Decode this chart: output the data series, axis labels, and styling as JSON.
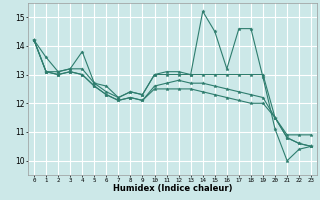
{
  "xlabel": "Humidex (Indice chaleur)",
  "bg_color": "#cce8e8",
  "grid_color": "#ffffff",
  "line_color": "#2e7d6e",
  "xlim": [
    -0.5,
    23.5
  ],
  "ylim": [
    9.5,
    15.5
  ],
  "xticks": [
    0,
    1,
    2,
    3,
    4,
    5,
    6,
    7,
    8,
    9,
    10,
    11,
    12,
    13,
    14,
    15,
    16,
    17,
    18,
    19,
    20,
    21,
    22,
    23
  ],
  "yticks": [
    10,
    11,
    12,
    13,
    14,
    15
  ],
  "series": [
    [
      14.2,
      13.6,
      13.1,
      13.2,
      13.8,
      12.7,
      12.6,
      12.2,
      12.4,
      12.3,
      13.0,
      13.1,
      13.1,
      13.0,
      15.2,
      14.5,
      13.2,
      14.6,
      14.6,
      12.9,
      11.1,
      10.0,
      10.4,
      10.5
    ],
    [
      14.2,
      13.1,
      13.1,
      13.2,
      13.2,
      12.7,
      12.4,
      12.2,
      12.4,
      12.3,
      13.0,
      13.0,
      13.0,
      13.0,
      13.0,
      13.0,
      13.0,
      13.0,
      13.0,
      13.0,
      11.5,
      10.9,
      10.9,
      10.9
    ],
    [
      14.2,
      13.1,
      13.0,
      13.1,
      13.0,
      12.6,
      12.3,
      12.1,
      12.2,
      12.1,
      12.6,
      12.7,
      12.8,
      12.7,
      12.7,
      12.6,
      12.5,
      12.4,
      12.3,
      12.2,
      11.5,
      10.8,
      10.6,
      10.5
    ],
    [
      14.2,
      13.1,
      13.0,
      13.1,
      13.0,
      12.6,
      12.3,
      12.1,
      12.2,
      12.1,
      12.5,
      12.5,
      12.5,
      12.5,
      12.4,
      12.3,
      12.2,
      12.1,
      12.0,
      12.0,
      11.5,
      10.8,
      10.6,
      10.5
    ]
  ]
}
